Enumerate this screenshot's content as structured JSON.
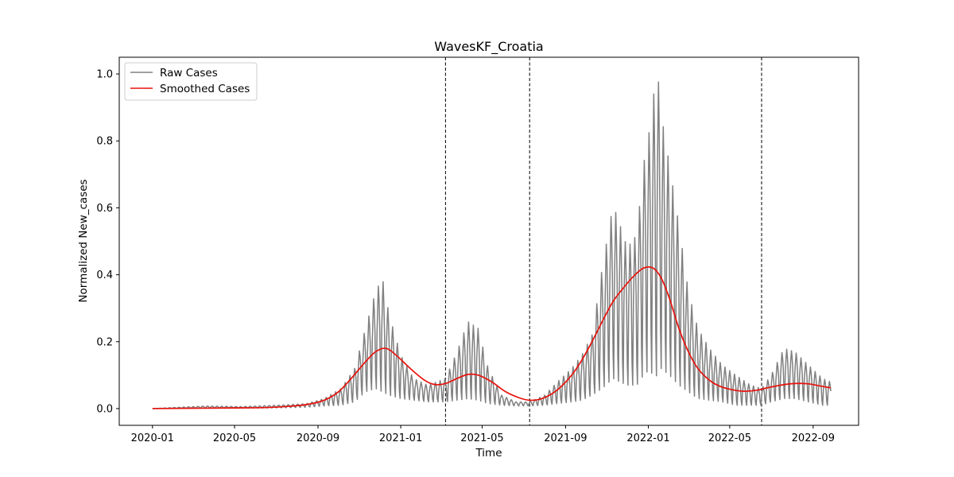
{
  "chart_data": {
    "type": "line",
    "title": "WavesKF_Croatia",
    "xlabel": "Time",
    "ylabel": "Normalized New_cases",
    "xlim": [
      "2019-11-13",
      "2022-11-07"
    ],
    "ylim": [
      -0.05,
      1.05
    ],
    "x_ticks": [
      "2020-01",
      "2020-05",
      "2020-09",
      "2021-01",
      "2021-05",
      "2021-09",
      "2022-01",
      "2022-05",
      "2022-09"
    ],
    "y_ticks": [
      "0.0",
      "0.2",
      "0.4",
      "0.6",
      "0.8",
      "1.0"
    ],
    "legend_position": "upper-left",
    "grid": false,
    "wave_boundaries": [
      "2021-03-08",
      "2021-07-10",
      "2022-06-17"
    ],
    "series": [
      {
        "name": "Raw Cases",
        "color": "#808080",
        "style": "weekly-oscillating",
        "envelope": {
          "dates": [
            "2020-01-01",
            "2020-03-20",
            "2020-05-10",
            "2020-07-01",
            "2020-08-15",
            "2020-09-10",
            "2020-10-05",
            "2020-10-25",
            "2020-11-10",
            "2020-11-25",
            "2020-12-05",
            "2020-12-15",
            "2021-01-01",
            "2021-01-20",
            "2021-02-10",
            "2021-03-08",
            "2021-03-25",
            "2021-04-10",
            "2021-04-25",
            "2021-05-10",
            "2021-05-30",
            "2021-06-20",
            "2021-07-10",
            "2021-08-01",
            "2021-08-20",
            "2021-09-10",
            "2021-09-25",
            "2021-10-10",
            "2021-10-25",
            "2021-11-10",
            "2021-11-20",
            "2021-12-01",
            "2021-12-15",
            "2021-12-25",
            "2022-01-05",
            "2022-01-10",
            "2022-01-15",
            "2022-01-20",
            "2022-02-01",
            "2022-02-15",
            "2022-03-01",
            "2022-03-15",
            "2022-04-01",
            "2022-04-20",
            "2022-05-10",
            "2022-06-01",
            "2022-06-17",
            "2022-07-01",
            "2022-07-20",
            "2022-08-05",
            "2022-08-25",
            "2022-09-15",
            "2022-09-27"
          ],
          "peaks": [
            0.0,
            0.008,
            0.006,
            0.01,
            0.015,
            0.03,
            0.06,
            0.12,
            0.24,
            0.35,
            0.39,
            0.28,
            0.16,
            0.09,
            0.07,
            0.09,
            0.17,
            0.26,
            0.24,
            0.12,
            0.04,
            0.02,
            0.02,
            0.04,
            0.08,
            0.12,
            0.16,
            0.22,
            0.42,
            0.61,
            0.55,
            0.48,
            0.52,
            0.73,
            0.86,
            0.96,
            1.0,
            0.88,
            0.73,
            0.55,
            0.35,
            0.24,
            0.18,
            0.13,
            0.1,
            0.07,
            0.06,
            0.1,
            0.18,
            0.17,
            0.13,
            0.09,
            0.08
          ],
          "troughs": [
            0.0,
            0.001,
            0.001,
            0.002,
            0.004,
            0.008,
            0.01,
            0.02,
            0.05,
            0.06,
            0.05,
            0.04,
            0.03,
            0.025,
            0.02,
            0.02,
            0.025,
            0.03,
            0.025,
            0.015,
            0.01,
            0.008,
            0.008,
            0.01,
            0.015,
            0.02,
            0.025,
            0.04,
            0.06,
            0.09,
            0.08,
            0.07,
            0.07,
            0.1,
            0.12,
            0.05,
            0.13,
            0.12,
            0.1,
            0.07,
            0.05,
            0.03,
            0.025,
            0.02,
            0.01,
            0.01,
            0.01,
            0.02,
            0.03,
            0.03,
            0.02,
            0.01,
            0.01
          ]
        }
      },
      {
        "name": "Smoothed Cases",
        "color": "#e8120c",
        "dates": [
          "2020-01-01",
          "2020-03-01",
          "2020-05-01",
          "2020-06-15",
          "2020-07-15",
          "2020-08-15",
          "2020-09-10",
          "2020-10-01",
          "2020-10-20",
          "2020-11-10",
          "2020-11-25",
          "2020-12-10",
          "2020-12-25",
          "2021-01-15",
          "2021-02-05",
          "2021-02-20",
          "2021-03-08",
          "2021-03-25",
          "2021-04-10",
          "2021-04-25",
          "2021-05-15",
          "2021-06-05",
          "2021-06-25",
          "2021-07-10",
          "2021-07-25",
          "2021-08-10",
          "2021-08-25",
          "2021-09-10",
          "2021-09-25",
          "2021-10-10",
          "2021-10-25",
          "2021-11-10",
          "2021-11-25",
          "2021-12-10",
          "2021-12-25",
          "2022-01-08",
          "2022-01-20",
          "2022-02-01",
          "2022-02-15",
          "2022-03-01",
          "2022-03-15",
          "2022-04-01",
          "2022-04-15",
          "2022-05-01",
          "2022-05-20",
          "2022-06-10",
          "2022-06-25",
          "2022-07-15",
          "2022-08-05",
          "2022-08-25",
          "2022-09-10",
          "2022-09-27"
        ],
        "values": [
          0.0,
          0.001,
          0.002,
          0.003,
          0.006,
          0.012,
          0.025,
          0.05,
          0.09,
          0.14,
          0.17,
          0.18,
          0.16,
          0.12,
          0.085,
          0.072,
          0.075,
          0.09,
          0.102,
          0.1,
          0.08,
          0.05,
          0.032,
          0.025,
          0.028,
          0.042,
          0.065,
          0.1,
          0.145,
          0.2,
          0.26,
          0.32,
          0.36,
          0.395,
          0.42,
          0.42,
          0.39,
          0.33,
          0.24,
          0.17,
          0.12,
          0.085,
          0.068,
          0.058,
          0.052,
          0.055,
          0.062,
          0.07,
          0.075,
          0.074,
          0.068,
          0.062
        ]
      }
    ]
  }
}
